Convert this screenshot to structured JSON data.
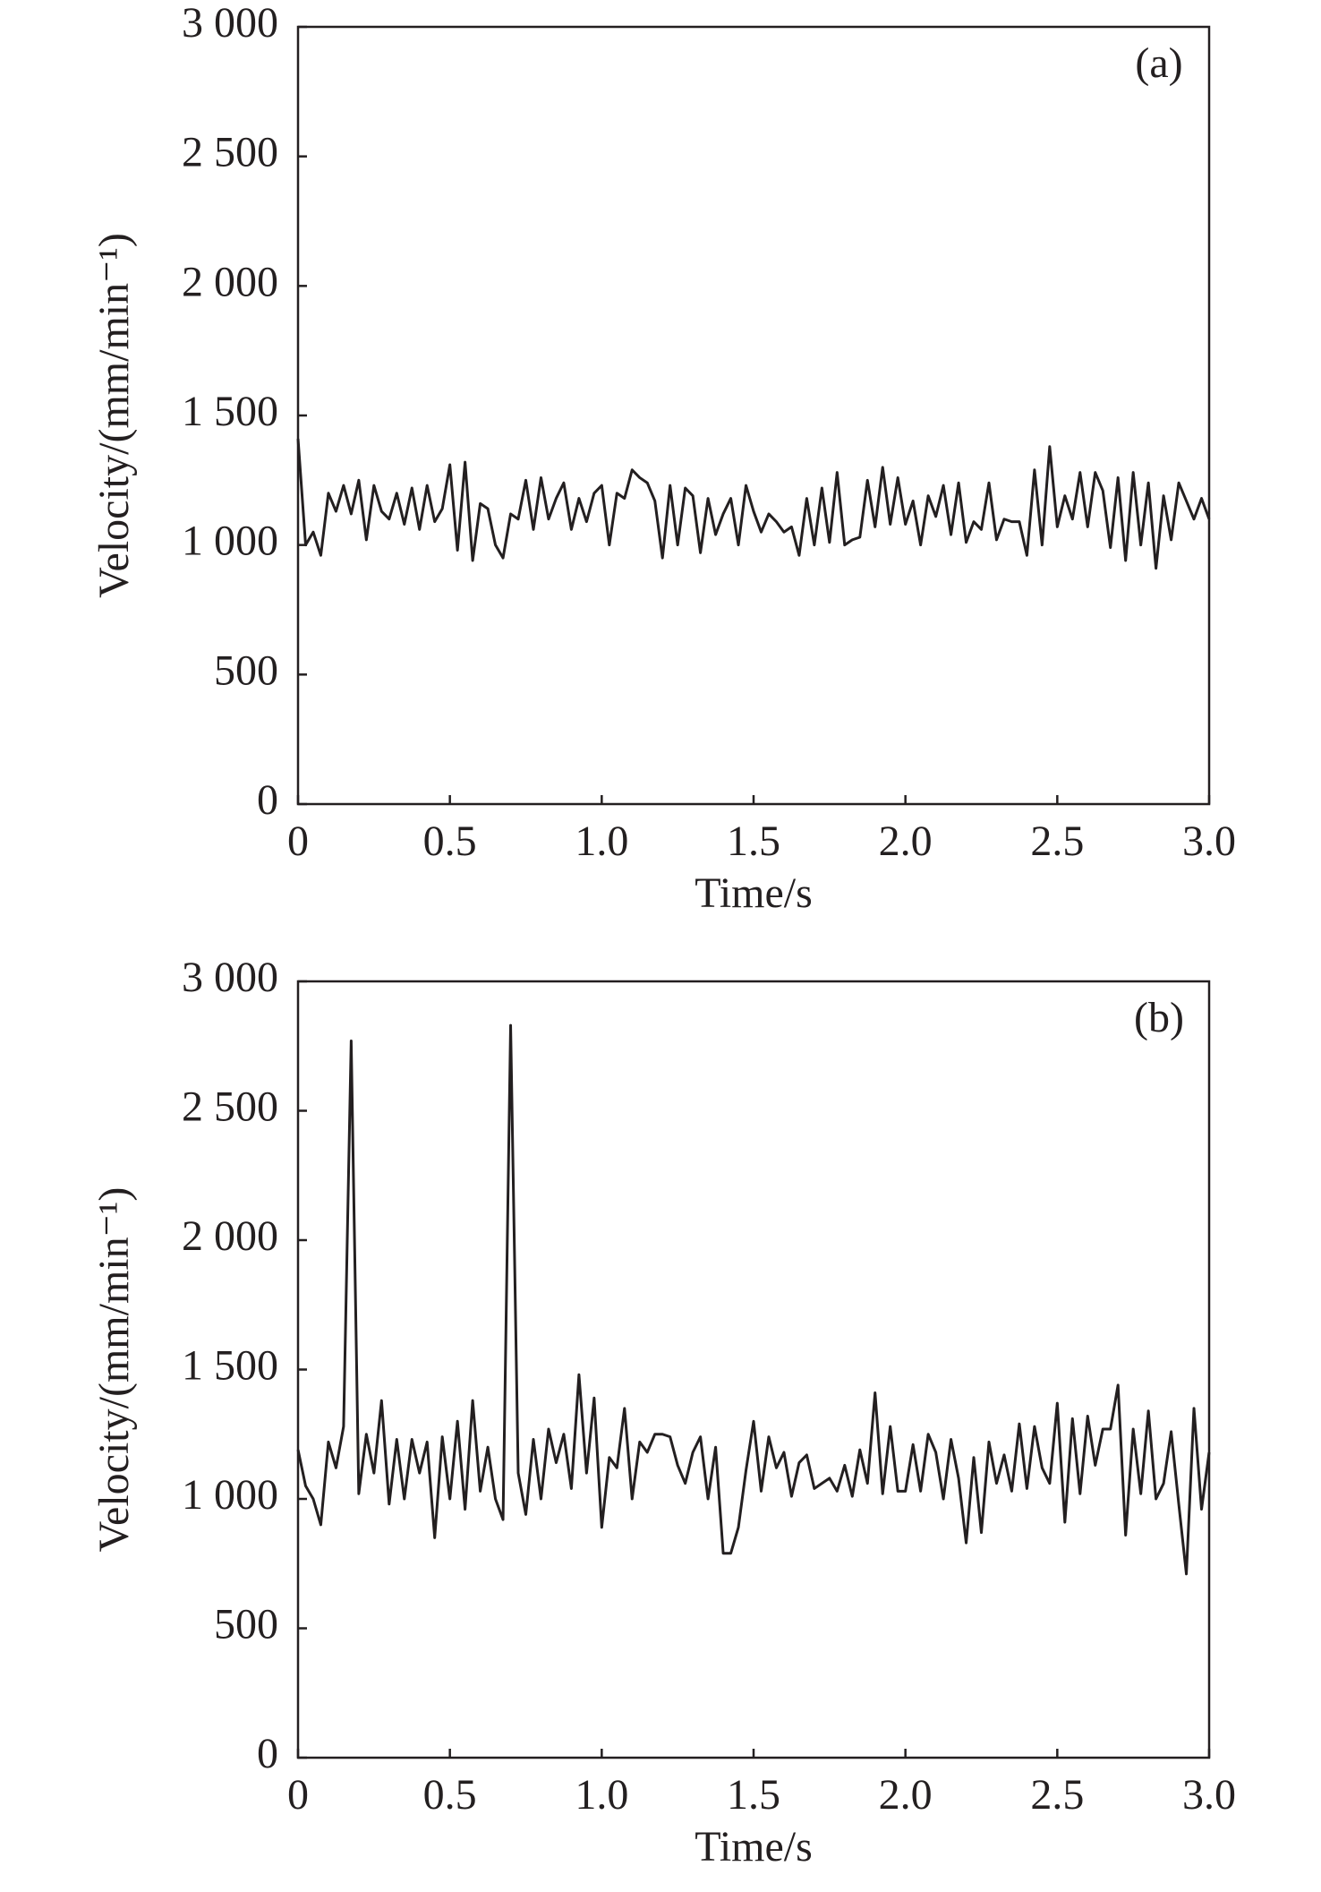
{
  "chart_data": [
    {
      "type": "line",
      "annotation": "(a)",
      "x_label": "Time/s",
      "y_label": "Velocity/(mm/min⁻¹)",
      "x": [
        0,
        0.025,
        0.05,
        0.075,
        0.1,
        0.125,
        0.15,
        0.175,
        0.2,
        0.225,
        0.25,
        0.275,
        0.3,
        0.325,
        0.35,
        0.375,
        0.4,
        0.425,
        0.45,
        0.475,
        0.5,
        0.525,
        0.55,
        0.575,
        0.6,
        0.625,
        0.65,
        0.675,
        0.7,
        0.725,
        0.75,
        0.775,
        0.8,
        0.825,
        0.85,
        0.875,
        0.9,
        0.925,
        0.95,
        0.975,
        1,
        1.025,
        1.05,
        1.075,
        1.1,
        1.125,
        1.15,
        1.175,
        1.2,
        1.225,
        1.25,
        1.275,
        1.3,
        1.325,
        1.35,
        1.375,
        1.4,
        1.425,
        1.45,
        1.475,
        1.5,
        1.525,
        1.55,
        1.575,
        1.6,
        1.625,
        1.65,
        1.675,
        1.7,
        1.725,
        1.75,
        1.775,
        1.8,
        1.825,
        1.85,
        1.875,
        1.9,
        1.925,
        1.95,
        1.975,
        2,
        2.025,
        2.05,
        2.075,
        2.1,
        2.125,
        2.15,
        2.175,
        2.2,
        2.225,
        2.25,
        2.275,
        2.3,
        2.325,
        2.35,
        2.375,
        2.4,
        2.425,
        2.45,
        2.475,
        2.5,
        2.525,
        2.55,
        2.575,
        2.6,
        2.625,
        2.65,
        2.675,
        2.7,
        2.725,
        2.75,
        2.775,
        2.8,
        2.825,
        2.85,
        2.875,
        2.9,
        2.925,
        2.95,
        2.975,
        3
      ],
      "series": [
        {
          "color": "#231f20",
          "values": [
            1410,
            1000,
            1050,
            960,
            1200,
            1130,
            1230,
            1120,
            1250,
            1020,
            1230,
            1130,
            1100,
            1200,
            1080,
            1220,
            1060,
            1230,
            1090,
            1140,
            1310,
            980,
            1320,
            940,
            1160,
            1140,
            1000,
            950,
            1120,
            1100,
            1250,
            1060,
            1260,
            1100,
            1180,
            1240,
            1060,
            1180,
            1090,
            1200,
            1230,
            1000,
            1200,
            1180,
            1290,
            1260,
            1240,
            1170,
            950,
            1230,
            1000,
            1220,
            1190,
            970,
            1180,
            1040,
            1120,
            1180,
            1000,
            1230,
            1130,
            1050,
            1120,
            1090,
            1050,
            1070,
            960,
            1180,
            1000,
            1220,
            1010,
            1280,
            1000,
            1020,
            1030,
            1250,
            1070,
            1300,
            1080,
            1260,
            1080,
            1170,
            1000,
            1190,
            1110,
            1230,
            1040,
            1240,
            1010,
            1090,
            1060,
            1240,
            1020,
            1100,
            1090,
            1090,
            960,
            1290,
            1000,
            1380,
            1070,
            1190,
            1100,
            1280,
            1070,
            1280,
            1210,
            990,
            1260,
            940,
            1280,
            1000,
            1240,
            910,
            1190,
            1020,
            1240,
            1170,
            1100,
            1180,
            1100
          ]
        }
      ],
      "xlim": [
        0,
        3
      ],
      "xticks": [
        0,
        0.5,
        {
          "value": 1,
          "label": "1.0"
        },
        1.5,
        {
          "value": 2,
          "label": "2.0"
        },
        2.5,
        {
          "value": 3,
          "label": "3.0"
        }
      ],
      "ylim": [
        0,
        3000
      ],
      "yticks": [
        0,
        500,
        {
          "value": 1000,
          "label": "1 000"
        },
        {
          "value": 1500,
          "label": "1 500"
        },
        {
          "value": 2000,
          "label": "2 000"
        },
        {
          "value": 2500,
          "label": "2 500"
        },
        {
          "value": 3000,
          "label": "3 000"
        }
      ]
    },
    {
      "type": "line",
      "annotation": "(b)",
      "x_label": "Time/s",
      "y_label": "Velocity/(mm/min⁻¹)",
      "x": [
        0,
        0.025,
        0.05,
        0.075,
        0.1,
        0.125,
        0.15,
        0.175,
        0.2,
        0.225,
        0.25,
        0.275,
        0.3,
        0.325,
        0.35,
        0.375,
        0.4,
        0.425,
        0.45,
        0.475,
        0.5,
        0.525,
        0.55,
        0.575,
        0.6,
        0.625,
        0.65,
        0.675,
        0.7,
        0.725,
        0.75,
        0.775,
        0.8,
        0.825,
        0.85,
        0.875,
        0.9,
        0.925,
        0.95,
        0.975,
        1,
        1.025,
        1.05,
        1.075,
        1.1,
        1.125,
        1.15,
        1.175,
        1.2,
        1.225,
        1.25,
        1.275,
        1.3,
        1.325,
        1.35,
        1.375,
        1.4,
        1.425,
        1.45,
        1.475,
        1.5,
        1.525,
        1.55,
        1.575,
        1.6,
        1.625,
        1.65,
        1.675,
        1.7,
        1.725,
        1.75,
        1.775,
        1.8,
        1.825,
        1.85,
        1.875,
        1.9,
        1.925,
        1.95,
        1.975,
        2,
        2.025,
        2.05,
        2.075,
        2.1,
        2.125,
        2.15,
        2.175,
        2.2,
        2.225,
        2.25,
        2.275,
        2.3,
        2.325,
        2.35,
        2.375,
        2.4,
        2.425,
        2.45,
        2.475,
        2.5,
        2.525,
        2.55,
        2.575,
        2.6,
        2.625,
        2.65,
        2.675,
        2.7,
        2.725,
        2.75,
        2.775,
        2.8,
        2.825,
        2.85,
        2.875,
        2.9,
        2.925,
        2.95,
        2.975,
        3
      ],
      "series": [
        {
          "color": "#231f20",
          "values": [
            1190,
            1050,
            1000,
            900,
            1220,
            1120,
            1280,
            2770,
            1020,
            1250,
            1100,
            1380,
            980,
            1230,
            1000,
            1230,
            1100,
            1220,
            850,
            1240,
            1000,
            1300,
            960,
            1380,
            1030,
            1200,
            1000,
            920,
            2830,
            1100,
            940,
            1230,
            1000,
            1270,
            1140,
            1250,
            1040,
            1480,
            1100,
            1390,
            890,
            1160,
            1120,
            1350,
            1000,
            1220,
            1180,
            1250,
            1250,
            1240,
            1130,
            1060,
            1180,
            1240,
            1000,
            1200,
            790,
            790,
            890,
            1110,
            1300,
            1030,
            1240,
            1120,
            1180,
            1010,
            1140,
            1170,
            1040,
            1060,
            1080,
            1030,
            1130,
            1010,
            1190,
            1060,
            1410,
            1020,
            1280,
            1030,
            1030,
            1210,
            1030,
            1250,
            1180,
            1000,
            1230,
            1080,
            830,
            1160,
            870,
            1220,
            1060,
            1170,
            1030,
            1290,
            1040,
            1280,
            1120,
            1060,
            1370,
            910,
            1310,
            1020,
            1320,
            1130,
            1270,
            1270,
            1440,
            860,
            1270,
            1020,
            1340,
            1000,
            1060,
            1260,
            980,
            710,
            1350,
            960,
            1180
          ]
        }
      ],
      "xlim": [
        0,
        3
      ],
      "xticks": [
        0,
        0.5,
        {
          "value": 1,
          "label": "1.0"
        },
        1.5,
        {
          "value": 2,
          "label": "2.0"
        },
        2.5,
        {
          "value": 3,
          "label": "3.0"
        }
      ],
      "ylim": [
        0,
        3000
      ],
      "yticks": [
        0,
        500,
        {
          "value": 1000,
          "label": "1 000"
        },
        {
          "value": 1500,
          "label": "1 500"
        },
        {
          "value": 2000,
          "label": "2 000"
        },
        {
          "value": 2500,
          "label": "2 500"
        },
        {
          "value": 3000,
          "label": "3 000"
        }
      ]
    }
  ]
}
